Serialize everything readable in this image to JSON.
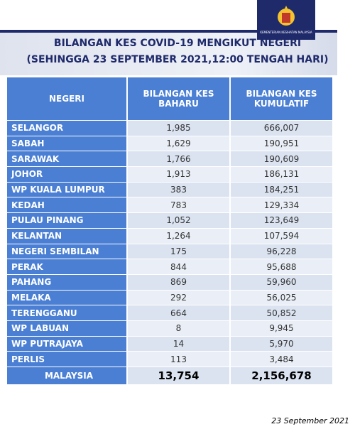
{
  "logo": {
    "caption": "KEMENTERIAN KESIHATAN MALAYSIA"
  },
  "header": {
    "title": "BILANGAN KES COVID-19 MENGIKUT NEGERI",
    "subtitle": "(SEHINGGA 23 SEPTEMBER 2021,12:00 TENGAH HARI)"
  },
  "table": {
    "columns": [
      "NEGERI",
      "BILANGAN KES BAHARU",
      "BILANGAN KES KUMULATIF"
    ],
    "rows": [
      [
        "SELANGOR",
        "1,985",
        "666,007"
      ],
      [
        "SABAH",
        "1,629",
        "190,951"
      ],
      [
        "SARAWAK",
        "1,766",
        "190,609"
      ],
      [
        "JOHOR",
        "1,913",
        "186,131"
      ],
      [
        "WP KUALA LUMPUR",
        "383",
        "184,251"
      ],
      [
        "KEDAH",
        "783",
        "129,334"
      ],
      [
        "PULAU PINANG",
        "1,052",
        "123,649"
      ],
      [
        "KELANTAN",
        "1,264",
        "107,594"
      ],
      [
        "NEGERI SEMBILAN",
        "175",
        "96,228"
      ],
      [
        "PERAK",
        "844",
        "95,688"
      ],
      [
        "PAHANG",
        "869",
        "59,960"
      ],
      [
        "MELAKA",
        "292",
        "56,025"
      ],
      [
        "TERENGGANU",
        "664",
        "50,852"
      ],
      [
        "WP LABUAN",
        "8",
        "9,945"
      ],
      [
        "WP PUTRAJAYA",
        "14",
        "5,970"
      ],
      [
        "PERLIS",
        "113",
        "3,484"
      ]
    ],
    "total": [
      "MALAYSIA",
      "13,754",
      "2,156,678"
    ]
  },
  "footer": {
    "date": "23 September 2021"
  }
}
